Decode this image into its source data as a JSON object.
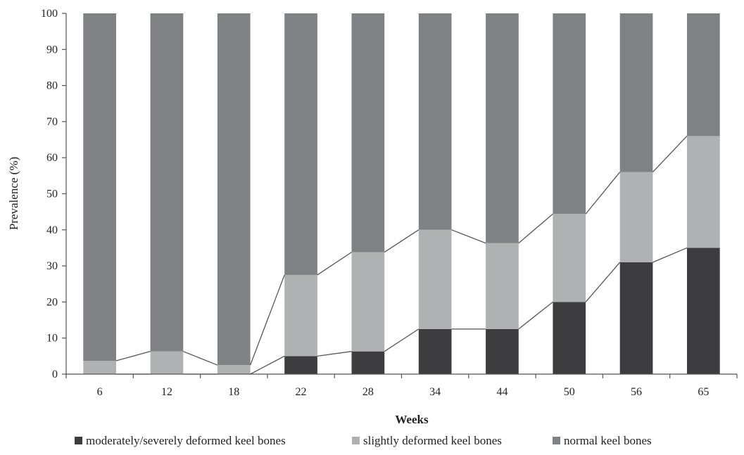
{
  "chart_data": {
    "type": "bar",
    "stacked": true,
    "categories": [
      "6",
      "12",
      "18",
      "22",
      "28",
      "34",
      "44",
      "50",
      "56",
      "65"
    ],
    "series": [
      {
        "name": "moderately/severely deformed keel bones",
        "color": "#3d3d3f",
        "values": [
          0,
          0,
          0,
          5,
          6.3,
          12.5,
          12.5,
          20,
          31,
          35
        ]
      },
      {
        "name": "slightly deformed keel bones",
        "color": "#b0b1b3",
        "values": [
          3.7,
          6.3,
          2.5,
          22.5,
          27.5,
          27.5,
          23.8,
          24.4,
          25,
          31
        ]
      },
      {
        "name": "normal keel bones",
        "color": "#808184",
        "values": [
          96.3,
          93.7,
          97.5,
          72.5,
          66.2,
          60,
          63.7,
          55.6,
          44,
          34
        ]
      }
    ],
    "connector_lines": true,
    "xlabel": "Weeks",
    "ylabel": "Prevalence (%)",
    "ylim": [
      0,
      100
    ],
    "yticks": [
      "0",
      "10",
      "20",
      "30",
      "40",
      "50",
      "60",
      "70",
      "80",
      "90",
      "100"
    ],
    "grid": false,
    "legend_position": "bottom"
  }
}
